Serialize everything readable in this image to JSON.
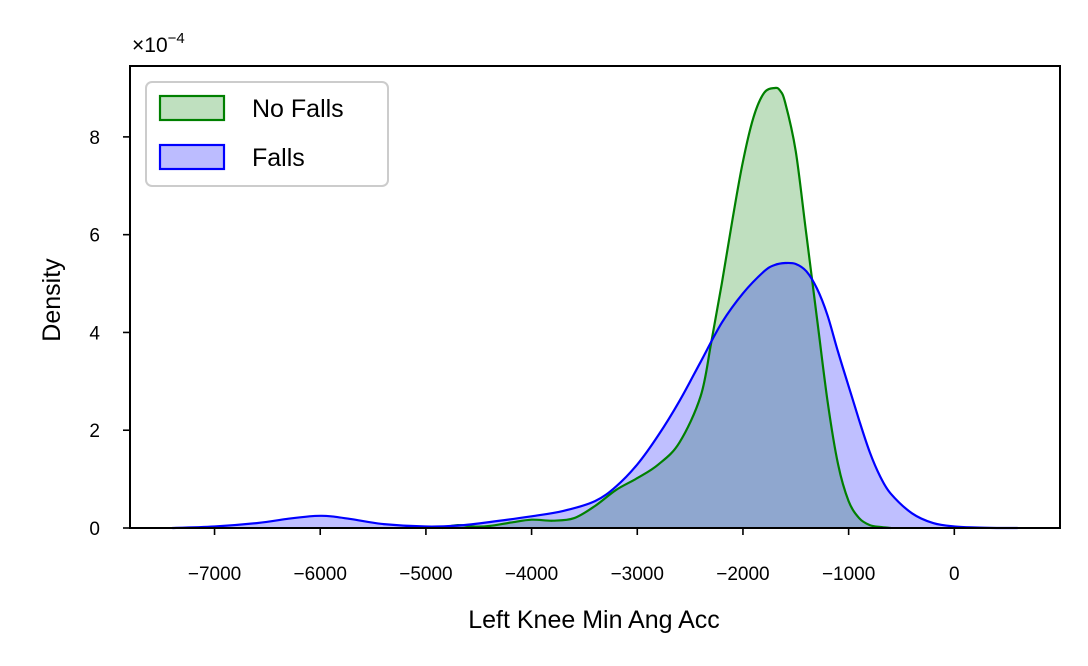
{
  "chart_data": {
    "type": "area",
    "title": "",
    "xlabel": "Left Knee Min Ang Acc",
    "ylabel": "Density",
    "y_multiplier": "×10",
    "y_multiplier_exponent": "−4",
    "xlim": [
      -7800,
      1000
    ],
    "ylim": [
      0,
      9.45
    ],
    "x_ticks": [
      -7000,
      -6000,
      -5000,
      -4000,
      -3000,
      -2000,
      -1000,
      0
    ],
    "x_tick_labels": [
      "−7000",
      "−6000",
      "−5000",
      "−4000",
      "−3000",
      "−2000",
      "−1000",
      "0"
    ],
    "y_ticks": [
      0,
      2,
      4,
      6,
      8
    ],
    "y_tick_labels": [
      "0",
      "2",
      "4",
      "6",
      "8"
    ],
    "grid": false,
    "legend_position": "top-left",
    "series": [
      {
        "name": "No Falls",
        "color": "#008000",
        "fill": "#bfe0bf",
        "x": [
          -4850,
          -4700,
          -4550,
          -4400,
          -4200,
          -4000,
          -3800,
          -3600,
          -3400,
          -3200,
          -3000,
          -2800,
          -2600,
          -2400,
          -2300,
          -2200,
          -2100,
          -2000,
          -1900,
          -1800,
          -1700,
          -1650,
          -1600,
          -1500,
          -1400,
          -1300,
          -1200,
          -1100,
          -1000,
          -900,
          -800,
          -700,
          -600
        ],
        "y": [
          0.0,
          0.06,
          0.03,
          0.04,
          0.11,
          0.17,
          0.15,
          0.2,
          0.45,
          0.78,
          1.02,
          1.3,
          1.75,
          2.7,
          3.8,
          5.0,
          6.3,
          7.5,
          8.4,
          8.9,
          9.0,
          8.95,
          8.7,
          7.7,
          6.0,
          4.3,
          2.6,
          1.3,
          0.55,
          0.2,
          0.06,
          0.02,
          0.0
        ]
      },
      {
        "name": "Falls",
        "color": "#0000ff",
        "fill": "#bcbcff",
        "x": [
          -7400,
          -7000,
          -6600,
          -6300,
          -6100,
          -6000,
          -5900,
          -5700,
          -5400,
          -5000,
          -4700,
          -4400,
          -4000,
          -3700,
          -3400,
          -3200,
          -3000,
          -2800,
          -2600,
          -2400,
          -2200,
          -2000,
          -1800,
          -1700,
          -1600,
          -1500,
          -1400,
          -1300,
          -1200,
          -1100,
          -1000,
          -900,
          -800,
          -700,
          -600,
          -400,
          -200,
          0,
          200,
          400,
          600
        ],
        "y": [
          0.0,
          0.03,
          0.1,
          0.19,
          0.24,
          0.25,
          0.24,
          0.18,
          0.08,
          0.03,
          0.05,
          0.12,
          0.24,
          0.35,
          0.55,
          0.85,
          1.3,
          1.9,
          2.6,
          3.4,
          4.2,
          4.8,
          5.25,
          5.38,
          5.42,
          5.4,
          5.25,
          4.9,
          4.35,
          3.6,
          2.9,
          2.2,
          1.55,
          1.05,
          0.7,
          0.3,
          0.1,
          0.03,
          0.01,
          0.0,
          0.0
        ]
      }
    ]
  }
}
